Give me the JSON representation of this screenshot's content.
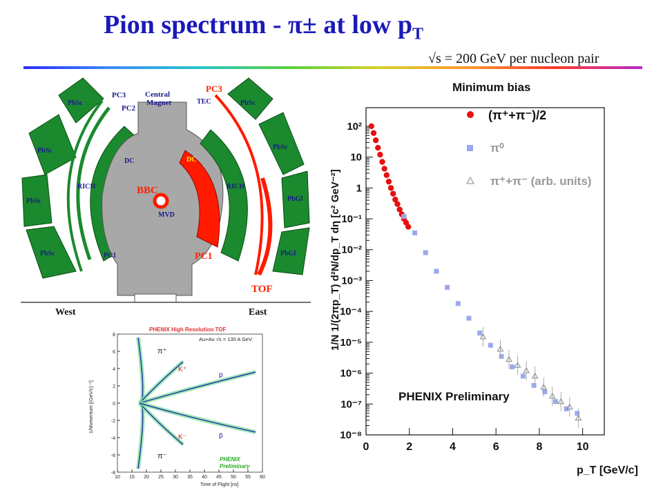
{
  "title": {
    "text": "Pion spectrum - π± at low p",
    "sub": "T"
  },
  "energy": "√s = 200 GeV per nucleon pair",
  "detector": {
    "labels": {
      "pc3_w": "PC3",
      "pc2": "PC2",
      "central": "Central",
      "magnet": "Magnet",
      "pc3_e": "PC3",
      "tec": "TEC",
      "pbsc": "PbSc",
      "pbgl": "PbGl",
      "dc_w": "DC",
      "dc_e": "DC",
      "rich_w": "RICH",
      "rich_e": "RICH",
      "bbc": "BBC",
      "mvd": "MVD",
      "pc1_w": "PC1",
      "pc1_e": "PC1",
      "tof": "TOF",
      "west": "West",
      "east": "East"
    },
    "colors": {
      "sector": "#1b8a2e",
      "magnet": "#a8a8a8",
      "highlight": "#ff1a00",
      "label_blue": "#1a1a8c",
      "label_red": "#ff2200"
    }
  },
  "tof_panel": {
    "title": "PHENIX High Resolution TOF",
    "subtitle": "Au+Au √s = 130 A GeV",
    "ylabel": "1/Momentum [(GeV/c)⁻¹]",
    "xlabel": "Time of Flight [ns]",
    "xticks": [
      "10",
      "15",
      "20",
      "25",
      "30",
      "35",
      "40",
      "45",
      "50",
      "55",
      "60"
    ],
    "yticks": [
      "8",
      "6",
      "4",
      "2",
      "0",
      "-2",
      "-4",
      "-6",
      "-8"
    ],
    "particles": {
      "pi_plus": "π⁺",
      "k_plus": "K⁺",
      "p": "p",
      "k_minus": "K⁻",
      "pbar": "p̄",
      "pi_minus": "π⁻"
    },
    "watermark": [
      "PHENIX",
      "Preliminary"
    ]
  },
  "chart_data": {
    "type": "scatter",
    "title": "Minimum bias",
    "xlabel": "p_T [GeV/c]",
    "ylabel": "1/N 1/(2πp_T) d²N/dp_T dη  [c² GeV⁻²]",
    "xlim": [
      0,
      11
    ],
    "ylim_log10": [
      -8,
      2.6
    ],
    "xticks": [
      0,
      2,
      4,
      6,
      8,
      10
    ],
    "yticks": [
      "10²",
      "10",
      "1",
      "10⁻¹",
      "10⁻²",
      "10⁻³",
      "10⁻⁴",
      "10⁻⁵",
      "10⁻⁶",
      "10⁻⁷",
      "10⁻⁸"
    ],
    "annotation": "PHENIX Preliminary",
    "legend_position": "top-right",
    "series": [
      {
        "name": "(π⁺+π⁻)/2",
        "marker": "circle",
        "color": "#e81010",
        "x": [
          0.25,
          0.35,
          0.45,
          0.55,
          0.65,
          0.75,
          0.85,
          0.95,
          1.05,
          1.15,
          1.25,
          1.35,
          1.45,
          1.55,
          1.65,
          1.75,
          1.85,
          1.95
        ],
        "y": [
          100,
          60,
          35,
          20,
          12,
          7,
          4.2,
          2.6,
          1.6,
          1.0,
          0.65,
          0.42,
          0.3,
          0.2,
          0.14,
          0.1,
          0.075,
          0.055
        ]
      },
      {
        "name": "π⁰",
        "marker": "square",
        "color": "#9aa8ee",
        "x": [
          1.75,
          2.25,
          2.75,
          3.25,
          3.75,
          4.25,
          4.75,
          5.25,
          5.75,
          6.25,
          6.75,
          7.25,
          7.75,
          8.25,
          8.75,
          9.25,
          9.75
        ],
        "y": [
          0.12,
          0.035,
          0.008,
          0.002,
          0.0006,
          0.00018,
          6e-05,
          2e-05,
          8e-06,
          3.5e-06,
          1.6e-06,
          8e-07,
          4e-07,
          2.5e-07,
          1.2e-07,
          7e-08,
          5e-08
        ]
      },
      {
        "name": "π⁺+π⁻   (arb. units)",
        "marker": "triangle-open",
        "color": "#888888",
        "x": [
          5.4,
          6.2,
          6.6,
          7.0,
          7.4,
          7.8,
          8.2,
          8.6,
          9.0,
          9.4,
          9.8
        ],
        "y": [
          1.5e-05,
          6e-06,
          2.8e-06,
          1.8e-06,
          1.2e-06,
          8e-07,
          3.5e-07,
          1.8e-07,
          1.2e-07,
          8e-08,
          3.5e-08
        ]
      }
    ]
  }
}
